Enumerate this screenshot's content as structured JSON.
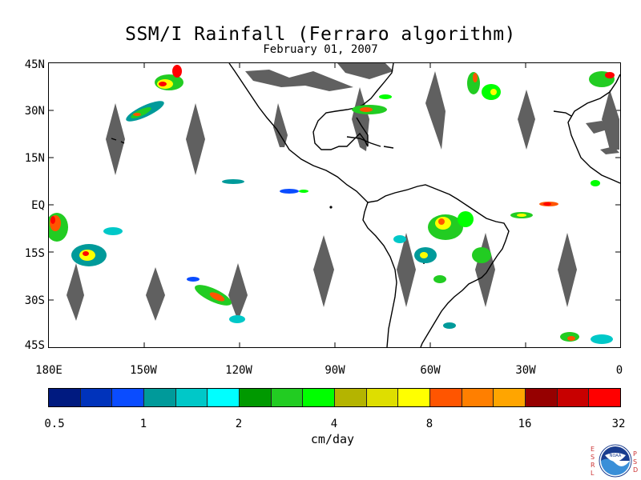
{
  "title": "SSM/I Rainfall (Ferraro algorithm)",
  "subtitle": "February 01, 2007",
  "lat_labels": [
    "45N",
    "30N",
    "15N",
    "EQ",
    "15S",
    "30S",
    "45S"
  ],
  "lon_labels": [
    "180E",
    "150W",
    "120W",
    "90W",
    "60W",
    "30W",
    "0"
  ],
  "colorbar": {
    "colors": [
      "#001a80",
      "#0033bb",
      "#0a4cff",
      "#009a9a",
      "#00c8c8",
      "#00ffff",
      "#009900",
      "#22cc22",
      "#00ff00",
      "#b4b400",
      "#dede00",
      "#ffff00",
      "#ff5500",
      "#ff7f00",
      "#ffa500",
      "#960000",
      "#c80000",
      "#ff0000"
    ],
    "ticks": [
      "0.5",
      "1",
      "2",
      "4",
      "8",
      "16",
      "32"
    ],
    "unit": "cm/day"
  },
  "logo": {
    "left_letters": [
      "E",
      "S",
      "R",
      "L"
    ],
    "right_letters": [
      "P",
      "S",
      "D"
    ],
    "badge_text": "NOAA"
  }
}
